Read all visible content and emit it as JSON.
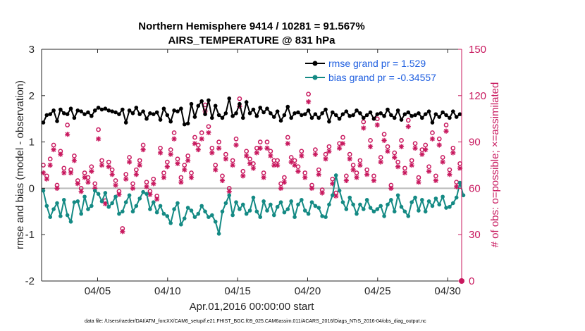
{
  "chart_data": {
    "type": "line",
    "title_line1": "Northern Hemisphere 9414 / 10281 = 91.567%",
    "title_line2": "AIRS_TEMPERATURE @ 831 hPa",
    "xlabel": "Apr.01,2016 00:00:00 start",
    "ylabel_left": "rmse and bias (model - observation)",
    "ylabel_right": "# of obs: o=possible; ×=assimilated",
    "x_ticks": [
      5,
      10,
      15,
      20,
      25,
      30
    ],
    "x_tick_labels": [
      "04/05",
      "04/10",
      "04/15",
      "04/20",
      "04/25",
      "04/30"
    ],
    "xlim": [
      1,
      31
    ],
    "ylim_left": [
      -2,
      3
    ],
    "y_ticks_left": [
      "3",
      "2",
      "1",
      "0",
      "-1",
      "-2"
    ],
    "ylim_right": [
      0,
      150
    ],
    "y_ticks_right": [
      "150",
      "120",
      "90",
      "60",
      "30",
      "0"
    ],
    "legend": {
      "rmse_label": "rmse grand pr = 1.529",
      "bias_label": "bias grand pr = -0.34557"
    },
    "colors": {
      "rmse": "#000000",
      "bias": "#148a84",
      "obs": "#c8185e",
      "zero_line": "#bbbbbb",
      "legend_text": "#1f5fe0"
    },
    "rmse_values": [
      1.42,
      1.58,
      1.6,
      1.68,
      1.45,
      1.7,
      1.62,
      1.6,
      1.72,
      1.52,
      1.68,
      1.66,
      1.6,
      1.64,
      1.56,
      1.68,
      1.74,
      1.7,
      1.72,
      1.68,
      1.66,
      1.64,
      1.6,
      1.7,
      1.42,
      1.68,
      1.62,
      1.74,
      1.6,
      1.66,
      1.5,
      1.62,
      1.6,
      1.64,
      1.48,
      1.72,
      1.58,
      1.44,
      1.68,
      1.66,
      1.72,
      1.38,
      1.4,
      1.82,
      1.54,
      1.78,
      1.88,
      1.6,
      1.9,
      1.52,
      1.78,
      1.58,
      1.52,
      1.62,
      1.94,
      1.56,
      1.62,
      1.82,
      1.52,
      1.86,
      1.62,
      1.7,
      1.56,
      1.74,
      1.64,
      1.72,
      1.62,
      1.54,
      1.66,
      1.46,
      1.58,
      1.76,
      1.52,
      1.62,
      1.64,
      1.58,
      1.6,
      1.68,
      1.52,
      1.6,
      1.52,
      1.62,
      1.7,
      1.44,
      1.64,
      1.58,
      1.5,
      1.6,
      1.66,
      1.56,
      1.58,
      1.68,
      1.62,
      1.52,
      1.58,
      1.64,
      1.5,
      1.6,
      1.62,
      1.56,
      1.7,
      1.58,
      1.52,
      1.68,
      1.48,
      1.6,
      1.64,
      1.56,
      1.58,
      1.62,
      1.52,
      1.6,
      1.66,
      1.42,
      1.6,
      1.54,
      1.64,
      1.58,
      1.52,
      1.66,
      1.54,
      1.6
    ],
    "bias_values": [
      -0.05,
      -0.38,
      -0.62,
      -0.45,
      -0.32,
      -0.6,
      -0.25,
      -0.58,
      -0.72,
      -0.3,
      -0.28,
      -0.55,
      -0.18,
      -0.45,
      -0.38,
      -0.05,
      -0.12,
      -0.28,
      -0.1,
      -0.4,
      -0.32,
      -0.18,
      -0.55,
      -0.5,
      -0.3,
      -0.15,
      -0.5,
      -0.38,
      -0.22,
      -0.08,
      -0.12,
      -0.45,
      -0.3,
      -0.52,
      -0.38,
      -0.55,
      -0.6,
      -0.75,
      -0.45,
      -0.32,
      -0.78,
      -0.65,
      -0.42,
      -0.48,
      -0.62,
      -0.55,
      -0.38,
      -0.5,
      -0.62,
      -0.58,
      -0.72,
      -0.98,
      -0.5,
      -0.32,
      -0.15,
      -0.58,
      -0.3,
      -0.45,
      -0.35,
      -0.55,
      -0.48,
      -0.2,
      -0.5,
      -0.62,
      -0.28,
      -0.48,
      -0.35,
      -0.58,
      -0.4,
      -0.3,
      -0.52,
      -0.45,
      -0.28,
      -0.62,
      -0.35,
      -0.25,
      -0.48,
      -0.55,
      -0.3,
      -0.38,
      -0.42,
      -0.6,
      -0.62,
      -0.35,
      -0.15,
      0.28,
      -0.05,
      -0.3,
      -0.45,
      -0.2,
      -0.35,
      -0.55,
      -0.35,
      -0.45,
      -0.25,
      -0.42,
      -0.5,
      -0.45,
      -0.38,
      -0.6,
      -0.35,
      -0.25,
      -0.5,
      -0.15,
      -0.4,
      -0.5,
      -0.6,
      -0.3,
      -0.2,
      -0.48,
      -0.25,
      -0.5,
      -0.28,
      -0.38,
      -0.22,
      -0.35,
      -0.18,
      -0.42,
      -0.4,
      -0.32,
      -0.2,
      0.12,
      -0.15
    ],
    "obs_possible": [
      75,
      68,
      79,
      88,
      62,
      84,
      73,
      101,
      72,
      81,
      65,
      60,
      70,
      67,
      74,
      63,
      98,
      78,
      52,
      77,
      72,
      65,
      58,
      34,
      69,
      80,
      63,
      72,
      78,
      88,
      64,
      58,
      66,
      55,
      86,
      70,
      77,
      85,
      96,
      79,
      67,
      75,
      81,
      70,
      93,
      88,
      96,
      114,
      100,
      86,
      75,
      90,
      68,
      82,
      60,
      78,
      92,
      118,
      71,
      84,
      79,
      76,
      86,
      90,
      70,
      90,
      84,
      78,
      78,
      63,
      67,
      93,
      80,
      78,
      74,
      84,
      70,
      121,
      62,
      85,
      72,
      59,
      82,
      87,
      66,
      57,
      89,
      93,
      68,
      82,
      75,
      70,
      78,
      103,
      72,
      91,
      68,
      105,
      80,
      95,
      87,
      62,
      83,
      77,
      91,
      73,
      104,
      78,
      89,
      67,
      85,
      88,
      74,
      96,
      68,
      92,
      80,
      101,
      72,
      86,
      64,
      76
    ],
    "obs_assimilated": [
      70,
      66,
      75,
      85,
      60,
      82,
      70,
      95,
      70,
      78,
      63,
      58,
      67,
      64,
      71,
      60,
      92,
      75,
      50,
      74,
      69,
      62,
      56,
      32,
      66,
      77,
      60,
      69,
      75,
      85,
      61,
      56,
      63,
      53,
      83,
      67,
      74,
      82,
      92,
      76,
      64,
      72,
      78,
      67,
      89,
      85,
      92,
      110,
      96,
      83,
      72,
      86,
      65,
      79,
      58,
      75,
      88,
      113,
      68,
      81,
      76,
      73,
      83,
      86,
      67,
      86,
      81,
      75,
      75,
      60,
      64,
      89,
      77,
      75,
      71,
      81,
      67,
      116,
      60,
      82,
      69,
      57,
      79,
      84,
      63,
      55,
      86,
      89,
      65,
      79,
      72,
      67,
      75,
      99,
      69,
      87,
      65,
      101,
      77,
      91,
      84,
      60,
      80,
      74,
      87,
      70,
      100,
      75,
      86,
      64,
      82,
      85,
      71,
      92,
      65,
      88,
      77,
      97,
      69,
      83,
      61,
      73
    ]
  },
  "footnote": "data file: /Users/raeder/DAI/ATM_forcXX/CAM6_setup/f.e21.FHIST_BGC.f09_025.CAM6assim.011/ACARS_2016/Diags_NTrS_2016-04/obs_diag_output.nc"
}
